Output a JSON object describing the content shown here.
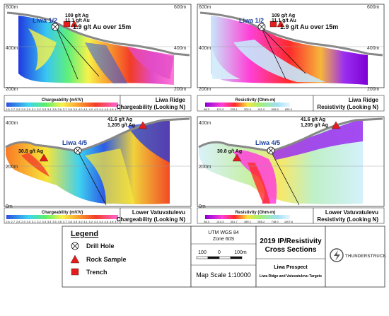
{
  "panels": {
    "tl": {
      "elev_top": "600m",
      "elev_mid": "400m",
      "elev_bot": "200m",
      "hole": "Liwa 1/2",
      "ann1": "109 g/t Ag",
      "ann2": "11.1 g/t Au",
      "ann3": "1.9 g/t Au over 15m",
      "cb_title": "Chargeability (mV/V)",
      "cb_ticks": [
        "2.6",
        "2.7",
        "2.8",
        "2.9",
        "3.0",
        "3.1",
        "3.2",
        "3.3",
        "3.4",
        "3.5",
        "3.6",
        "3.7",
        "3.8",
        "3.9",
        "4.0",
        "4.1",
        "4.2",
        "4.3",
        "4.4",
        "4.5",
        "4.6",
        "4.7"
      ],
      "title1": "Liwa Ridge",
      "title2": "Chargeability (Looking N)"
    },
    "tr": {
      "elev_top": "600m",
      "elev_mid": "400m",
      "elev_bot": "200m",
      "hole": "Liwa 1/2",
      "ann1": "109 g/t Ag",
      "ann2": "11.1 g/t Au",
      "ann3": "1.9 g/t Au over 15m",
      "cb_title": "Resistivity (Ohm-m)",
      "cb_ticks": [
        "98.3",
        "121.0",
        "233.1",
        "302.9",
        "411.0",
        "595.5",
        "852.4"
      ],
      "title1": "Liwa Ridge",
      "title2": "Resistivity (Looking N)"
    },
    "bl": {
      "elev_top": "400m",
      "elev_mid": "200m",
      "elev_bot": "0m",
      "hole": "Liwa 4/5",
      "ann1": "41.6 g/t Ag",
      "ann2": "1,205 g/t Ag",
      "ann3": "30.8 g/t Ag",
      "cb_title": "Chargeability (mV/V)",
      "cb_ticks": [
        "2.6",
        "2.7",
        "2.8",
        "2.9",
        "3.0",
        "3.1",
        "3.2",
        "3.3",
        "3.4",
        "3.5",
        "3.6",
        "3.7",
        "3.8",
        "3.9",
        "4.0",
        "4.1",
        "4.2",
        "4.3",
        "4.4",
        "4.5",
        "4.6",
        "4.7"
      ],
      "title1": "Lower Vatuvatulevu",
      "title2": "Chargeability (Looking N)"
    },
    "br": {
      "elev_top": "400m",
      "elev_mid": "200m",
      "elev_bot": "0m",
      "hole": "Liwa 4/5",
      "ann1": "41.6 g/t Ag",
      "ann2": "1,205 g/t Ag",
      "ann3": "30.8 g/t Ag",
      "cb_title": "Resistivity (Ohm-m)",
      "cb_ticks": [
        "98.3",
        "214.3",
        "301.7",
        "389.1",
        "505.2",
        "748.0",
        "1007.6"
      ],
      "title1": "Lower Vatuvatulevu",
      "title2": "Resistivity (Looking N)"
    }
  },
  "legend": {
    "title": "Legend",
    "drill_hole": "Drill Hole",
    "rock_sample": "Rock Sample",
    "trench": "Trench"
  },
  "scale": {
    "utm": "UTM WGS 84",
    "zone": "Zone 60S",
    "t0": "100",
    "t1": "0",
    "t2": "100m",
    "map_scale": "Map Scale 1:10000"
  },
  "title_box": {
    "line1": "2019 IP/Resistivity",
    "line2": "Cross Sections",
    "prospect": "Liwa Prospect",
    "targets": "Liwa Ridge and Vatuvatulevu Targets"
  },
  "logo": {
    "text": "THUNDERSTRUCK"
  },
  "colors": {
    "charge_low": "#3a4bd8",
    "charge_high": "#e03ac0",
    "res_low": "#8a00d6",
    "res_high": "#c8e6f7",
    "marker_red": "#e51c1c",
    "hole_blue": "#1a3ea0"
  }
}
